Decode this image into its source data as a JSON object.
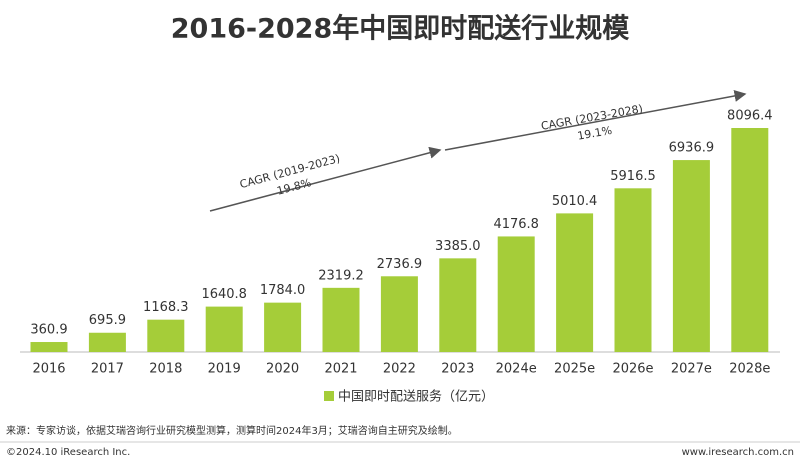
{
  "chart_data": {
    "type": "bar",
    "title": "2016-2028年中国即时配送行业规模",
    "categories": [
      "2016",
      "2017",
      "2018",
      "2019",
      "2020",
      "2021",
      "2022",
      "2023",
      "2024e",
      "2025e",
      "2026e",
      "2027e",
      "2028e"
    ],
    "series": [
      {
        "name": "中国即时配送服务（亿元）",
        "color": "#a5cd39",
        "values": [
          360.9,
          695.9,
          1168.3,
          1640.8,
          1784.0,
          2319.2,
          2736.9,
          3385.0,
          4176.8,
          5010.4,
          5916.5,
          6936.9,
          8096.4
        ],
        "value_labels": [
          "360.9",
          "695.9",
          "1168.3",
          "1640.8",
          "1784.0",
          "2319.2",
          "2736.9",
          "3385.0",
          "4176.8",
          "5010.4",
          "5916.5",
          "6936.9",
          "8096.4"
        ]
      }
    ],
    "annotations": [
      {
        "label": "CAGR (2019-2023)",
        "rate": "19.8%"
      },
      {
        "label": "CAGR (2023-2028)",
        "rate": "19.1%"
      }
    ]
  },
  "source": "来源：专家访谈，依据艾瑞咨询行业研究模型测算，测算时间2024年3月；艾瑞咨询自主研究及绘制。",
  "copyright": "©2024.10 iResearch Inc.",
  "website": "www.iresearch.com.cn"
}
